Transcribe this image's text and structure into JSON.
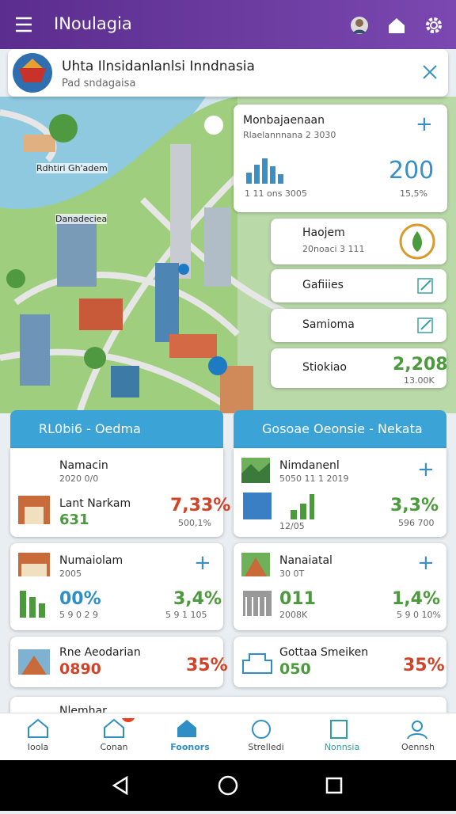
{
  "app_bar": {
    "title": "INoulagia"
  },
  "banner": {
    "title": "Uhta Ilnsidanlanlsi Inndnasia",
    "subtitle": "Pad sndagaisa"
  },
  "map": {
    "labels": [
      "Rdhtiri Gh'adem",
      "Danadeciea"
    ]
  },
  "side_cards": [
    {
      "title": "Monbajaenaan",
      "subtitle": "Rlaelannnana 2 3030",
      "value": "200",
      "left_note": "1 11 ons 3005",
      "right_note": "15,5%"
    },
    {
      "title": "Haojem",
      "subtitle": "20noaci 3 111"
    },
    {
      "title": "Gafiiies"
    },
    {
      "title": "Samioma"
    },
    {
      "title": "Stiokiao",
      "value": "2,208",
      "note": "13.00K"
    }
  ],
  "sections": [
    {
      "title": "RL0bi6 - Oedma"
    },
    {
      "title": "Gosoae Oeonsie - Nekata"
    }
  ],
  "cards": [
    {
      "title": "Namacin",
      "date": "2020 0/0",
      "sub_title": "Lant Narkam",
      "value": "631",
      "percent": "7,33%",
      "note": "500,1%"
    },
    {
      "title": "Nimdanenl",
      "date": "5050 11 1 2019",
      "value": "12/05",
      "percent": "3,3%",
      "note": "596 700"
    },
    {
      "title": "Numaiolam",
      "date": "2005",
      "value": "00%",
      "value_note": "5 9 0 2 9",
      "percent": "3,4%",
      "note": "5 9 1 105"
    },
    {
      "title": "Nanaiatal",
      "date": "30 0T",
      "value": "011",
      "value_note": "2008K",
      "percent": "1,4%",
      "note": "5 9 0 10%"
    },
    {
      "title": "Rne Aeodarian",
      "value": "0890",
      "percent": "35%"
    },
    {
      "title": "Gottaa Smeiken",
      "value": "050",
      "percent": "35%"
    },
    {
      "title": "Nlemhar"
    }
  ],
  "nav": [
    "Ioola",
    "Conan",
    "Foonors",
    "Strelledi",
    "Nonnsia",
    "Oennsh"
  ]
}
